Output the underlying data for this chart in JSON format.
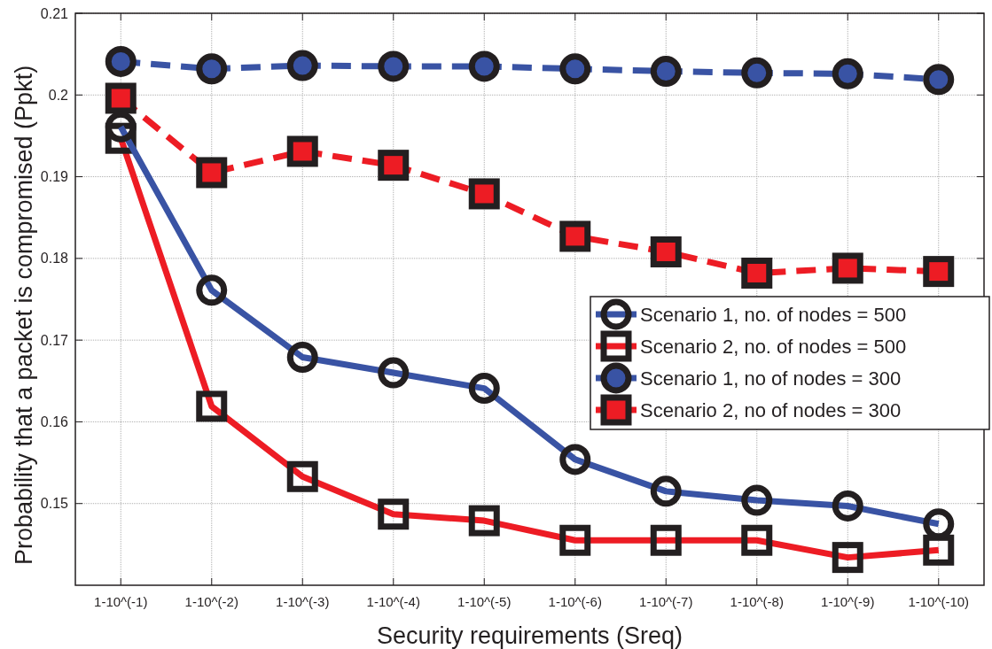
{
  "chart_data": {
    "type": "line",
    "xlabel": "Security requirements (Sreq)",
    "ylabel": "Probability that a packet is compromised (Ppkt)",
    "categories": [
      "1-10^(-1)",
      "1-10^(-2)",
      "1-10^(-3)",
      "1-10^(-4)",
      "1-10^(-5)",
      "1-10^(-6)",
      "1-10^(-7)",
      "1-10^(-8)",
      "1-10^(-9)",
      "1-10^(-10)"
    ],
    "ylim": [
      0.14,
      0.21
    ],
    "yticks": [
      0.15,
      0.16,
      0.17,
      0.18,
      0.19,
      0.2,
      0.21
    ],
    "grid": true,
    "legend": "right",
    "series": [
      {
        "name": "Scenario 1, no. of nodes = 500",
        "color": "#3953a4",
        "marker": "circle",
        "line_style": "solid",
        "values": [
          0.1961,
          0.1761,
          0.1679,
          0.166,
          0.1641,
          0.1554,
          0.1515,
          0.1504,
          0.1497,
          0.1475
        ]
      },
      {
        "name": "Scenario 2, no. of nodes = 500",
        "color": "#ed1c24",
        "marker": "square",
        "line_style": "solid",
        "values": [
          0.1947,
          0.1619,
          0.1533,
          0.1487,
          0.1479,
          0.1455,
          0.1455,
          0.1455,
          0.1434,
          0.1443
        ]
      },
      {
        "name": "Scenario 1, no of nodes = 300",
        "color": "#3953a4",
        "marker": "circle",
        "line_style": "dashed",
        "values": [
          0.2041,
          0.2032,
          0.2036,
          0.2035,
          0.2035,
          0.2032,
          0.2029,
          0.2027,
          0.2026,
          0.2019
        ]
      },
      {
        "name": "Scenario 2, no of nodes = 300",
        "color": "#ed1c24",
        "marker": "square",
        "line_style": "dashed",
        "values": [
          0.1996,
          0.1905,
          0.1931,
          0.1914,
          0.1879,
          0.1827,
          0.1808,
          0.1782,
          0.1788,
          0.1784
        ]
      }
    ]
  }
}
